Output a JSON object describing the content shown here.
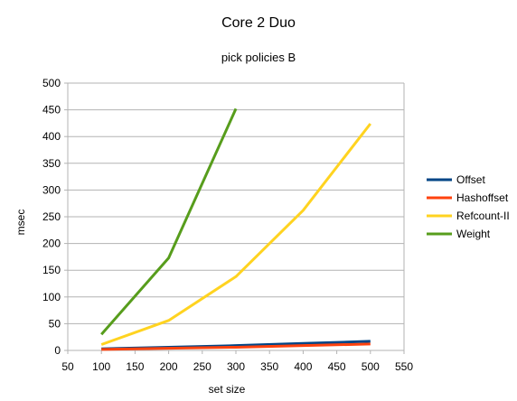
{
  "chart_data": {
    "type": "line",
    "title": "Core 2 Duo",
    "subtitle": "pick policies B",
    "xlabel": "set size",
    "ylabel": "msec",
    "xlim": [
      50,
      550
    ],
    "ylim": [
      0,
      500
    ],
    "xticks": [
      50,
      100,
      150,
      200,
      250,
      300,
      350,
      400,
      450,
      500,
      550
    ],
    "yticks": [
      0,
      50,
      100,
      150,
      200,
      250,
      300,
      350,
      400,
      450,
      500
    ],
    "grid": "horizontal",
    "legend_position": "right",
    "series": [
      {
        "name": "Offset",
        "color": "#004586",
        "x": [
          100,
          200,
          300,
          400,
          500
        ],
        "y": [
          3,
          6,
          9,
          13,
          17
        ]
      },
      {
        "name": "Hashoffset",
        "color": "#ff420e",
        "x": [
          100,
          200,
          300,
          400,
          500
        ],
        "y": [
          2,
          4,
          6,
          9,
          12
        ]
      },
      {
        "name": "Refcount-II",
        "color": "#ffd320",
        "x": [
          100,
          200,
          300,
          400,
          500
        ],
        "y": [
          11,
          56,
          138,
          262,
          424
        ]
      },
      {
        "name": "Weight",
        "color": "#579d1c",
        "x": [
          100,
          200,
          300
        ],
        "y": [
          30,
          173,
          452
        ]
      }
    ]
  }
}
